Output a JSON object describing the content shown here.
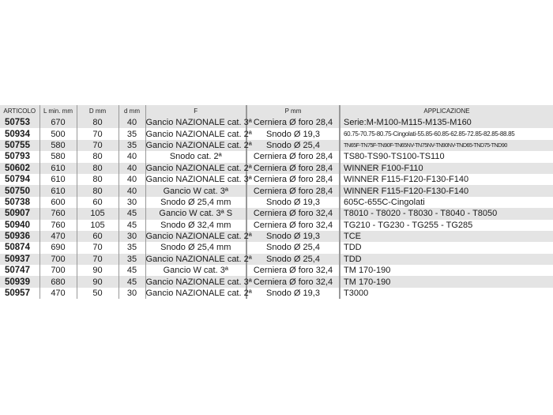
{
  "headers": [
    "ARTICOLO",
    "L min. mm",
    "D mm",
    "d mm",
    "F",
    "P mm",
    "APPLICAZIONE"
  ],
  "rows": [
    [
      "50753",
      "670",
      "80",
      "40",
      "Gancio NAZIONALE cat. 3ª",
      "Cerniera Ø foro 28,4",
      "Serie:M-M100-M115-M135-M160"
    ],
    [
      "50934",
      "500",
      "70",
      "35",
      "Gancio NAZIONALE cat. 2ª",
      "Snodo Ø 19,3",
      "60.75-70.75-80.75-Cingolati-55.85-60.85-62.85-72.85-82.85-88.85"
    ],
    [
      "50755",
      "580",
      "70",
      "35",
      "Gancio NAZIONALE cat. 2ª",
      "Snodo Ø 25,4",
      "TN65F-TN75F-TN90F-TN65NV-TN75NV-TN90NV-TND65-TND75-TND90"
    ],
    [
      "50793",
      "580",
      "80",
      "40",
      "Snodo cat. 2ª",
      "Cerniera Ø foro 28,4",
      "TS80-TS90-TS100-TS110"
    ],
    [
      "50602",
      "610",
      "80",
      "40",
      "Gancio NAZIONALE cat. 2ª",
      "Cerniera Ø foro 28,4",
      "WINNER F100-F110"
    ],
    [
      "50794",
      "610",
      "80",
      "40",
      "Gancio NAZIONALE cat. 3ª",
      "Cerniera Ø foro 28,4",
      "WINNER F115-F120-F130-F140"
    ],
    [
      "50750",
      "610",
      "80",
      "40",
      "Gancio W cat. 3ª",
      "Cerniera Ø foro 28,4",
      "WINNER F115-F120-F130-F140"
    ],
    [
      "50738",
      "600",
      "60",
      "30",
      "Snodo Ø 25,4 mm",
      "Snodo Ø 19,3",
      "605C-655C-Cingolati"
    ],
    [
      "50907",
      "760",
      "105",
      "45",
      "Gancio W cat. 3ª S",
      "Cerniera Ø foro 32,4",
      "T8010 - T8020 - T8030 - T8040 - T8050"
    ],
    [
      "50940",
      "760",
      "105",
      "45",
      "Snodo Ø 32,4 mm",
      "Cerniera Ø foro 32,4",
      "TG210 - TG230 - TG255 - TG285"
    ],
    [
      "50936",
      "470",
      "60",
      "30",
      "Gancio NAZIONALE cat. 2ª",
      "Snodo Ø 19,3",
      "TCE"
    ],
    [
      "50874",
      "690",
      "70",
      "35",
      "Snodo Ø 25,4 mm",
      "Snodo Ø 25,4",
      "TDD"
    ],
    [
      "50937",
      "700",
      "70",
      "35",
      "Gancio NAZIONALE cat. 2ª",
      "Snodo Ø 25,4",
      "TDD"
    ],
    [
      "50747",
      "700",
      "90",
      "45",
      "Gancio W cat. 3ª",
      "Cerniera Ø foro 32,4",
      "TM 170-190"
    ],
    [
      "50939",
      "680",
      "90",
      "45",
      "Gancio NAZIONALE cat. 3ª",
      "Cerniera Ø foro 32,4",
      "TM 170-190"
    ],
    [
      "50957",
      "470",
      "50",
      "30",
      "Gancio NAZIONALE cat. 2ª",
      "Snodo Ø 19,3",
      "T3000"
    ]
  ]
}
